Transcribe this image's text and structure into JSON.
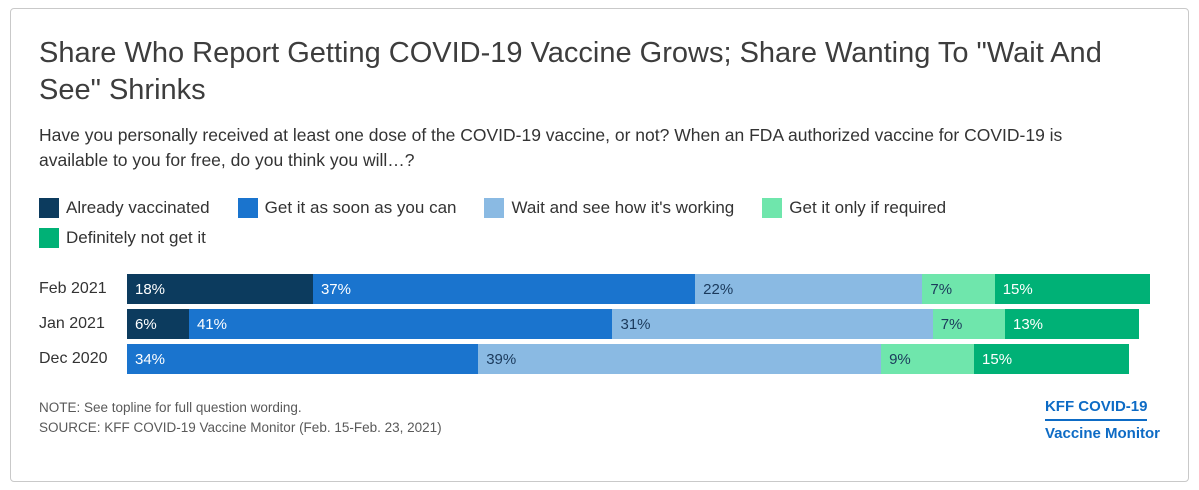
{
  "card": {
    "title": "Share Who Report Getting COVID-19 Vaccine Grows; Share Wanting To \"Wait And See\" Shrinks",
    "subtitle": "Have you personally received at least one dose of the COVID-19 vaccine, or not? When an FDA authorized vaccine for COVID-19 is available to you for free, do you think you will…?",
    "note": "NOTE: See topline for full question wording.",
    "source": "SOURCE: KFF COVID-19 Vaccine Monitor (Feb. 15-Feb. 23, 2021)",
    "logo": {
      "line1": "KFF COVID-19",
      "line2": "Vaccine Monitor",
      "color": "#0d6bc5"
    }
  },
  "chart_data": {
    "type": "bar",
    "orientation": "horizontal-stacked",
    "title": "Share Who Report Getting COVID-19 Vaccine Grows; Share Wanting To \"Wait And See\" Shrinks",
    "categories": [
      "Feb 2021",
      "Jan 2021",
      "Dec 2020"
    ],
    "series": [
      {
        "name": "Already vaccinated",
        "color": "#0c3b5e",
        "label_style": "light",
        "values": [
          18,
          6,
          0
        ]
      },
      {
        "name": "Get it as soon as you can",
        "color": "#1a74ce",
        "label_style": "light",
        "values": [
          37,
          41,
          34
        ]
      },
      {
        "name": "Wait and see how it's working",
        "color": "#8abae3",
        "label_style": "dark",
        "values": [
          22,
          31,
          39
        ]
      },
      {
        "name": "Get it only if required",
        "color": "#6fe6ac",
        "label_style": "dark",
        "values": [
          7,
          7,
          9
        ]
      },
      {
        "name": "Definitely not get it",
        "color": "#00b176",
        "label_style": "light",
        "values": [
          15,
          13,
          15
        ]
      }
    ],
    "value_suffix": "%",
    "xlim": [
      0,
      100
    ],
    "grid": false,
    "legend_position": "top"
  }
}
